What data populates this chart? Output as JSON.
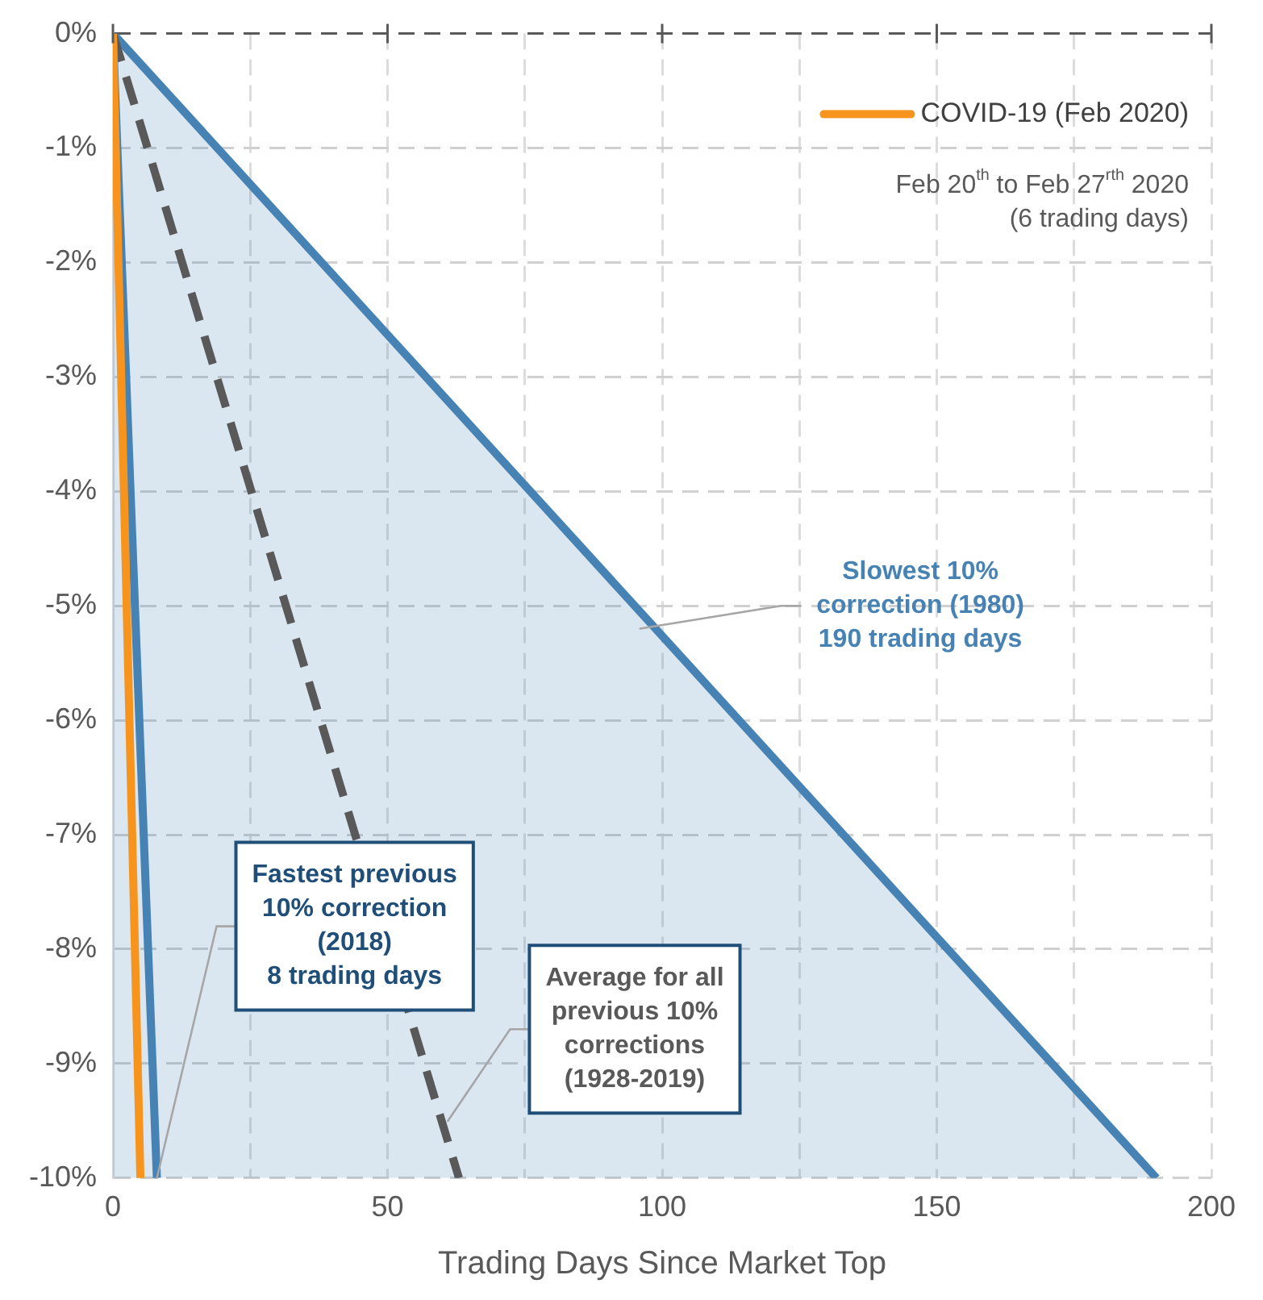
{
  "chart_data": {
    "type": "line",
    "xlabel": "Trading Days Since Market Top",
    "xlim": [
      0,
      200
    ],
    "xticks": [
      0,
      {
        "value": 25,
        "label": null
      },
      50,
      {
        "value": 75,
        "label": null
      },
      100,
      {
        "value": 125,
        "label": null
      },
      150,
      {
        "value": 175,
        "label": null
      },
      200
    ],
    "ylim": [
      -10,
      0
    ],
    "yticks": [
      {
        "value": 0,
        "label": "0%"
      },
      {
        "value": -1,
        "label": "-1%"
      },
      {
        "value": -2,
        "label": "-2%"
      },
      {
        "value": -3,
        "label": "-3%"
      },
      {
        "value": -4,
        "label": "-4%"
      },
      {
        "value": -5,
        "label": "-5%"
      },
      {
        "value": -6,
        "label": "-6%"
      },
      {
        "value": -7,
        "label": "-7%"
      },
      {
        "value": -8,
        "label": "-8%"
      },
      {
        "value": -9,
        "label": "-9%"
      },
      {
        "value": -10,
        "label": "-10%"
      }
    ],
    "grid": true,
    "legend": "top right",
    "marker": "none",
    "series": [
      {
        "type": "area",
        "color": "#4682b4",
        "x": [
          0,
          190
        ],
        "values": [
          0,
          -10
        ]
      },
      {
        "color": "#595959",
        "line_style": "dashed",
        "x": [
          0,
          63
        ],
        "values": [
          0,
          -10
        ]
      },
      {
        "color": "#4682b4",
        "x": [
          0,
          8
        ],
        "values": [
          0,
          -10
        ]
      },
      {
        "name": "COVID-19 (Feb 2020)",
        "color": "#f7941d",
        "x": [
          0,
          5
        ],
        "values": [
          0,
          -10
        ]
      }
    ],
    "annotations": [
      "Feb 20$^{th}$ to Feb 27$^{rth}$ 2020\n(6 trading days)",
      {
        "text": "Slowest 10%\ncorrection (1980)\n190 trading days",
        "x": 96,
        "y": -5.2
      },
      {
        "text": "Fastest previous\n10% correction\n(2018)\n8 trading days",
        "x": 8,
        "y": -10
      },
      {
        "text": "Average for all\nprevious 10%\ncorrections\n(1928-2019)",
        "x": 61,
        "y": -9.5
      }
    ]
  }
}
